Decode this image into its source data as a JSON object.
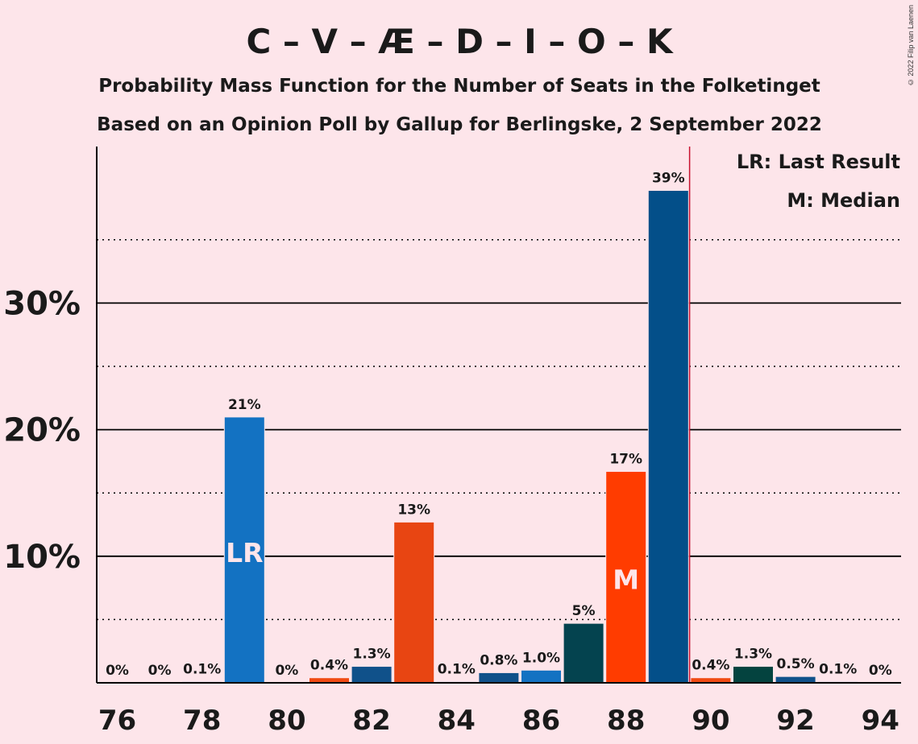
{
  "chart_data": {
    "type": "bar",
    "title": "C – V – Æ – D – I – O – K",
    "subtitle1": "Probability Mass Function for the Number of Seats in the Folketinget",
    "subtitle2": "Based on an Opinion Poll by Gallup for Berlingske, 2 September 2022",
    "copyright": "© 2022 Filip van Laenen",
    "legend": {
      "last_result": "LR: Last Result",
      "median": "M: Median"
    },
    "ylim": [
      0,
      42
    ],
    "y_major_ticks": [
      10,
      20,
      30
    ],
    "y_major_labels": [
      "10%",
      "20%",
      "30%"
    ],
    "y_minor_ticks": [
      5,
      15,
      25,
      35
    ],
    "x_ticks": [
      76,
      78,
      80,
      82,
      84,
      86,
      88,
      90,
      92,
      94
    ],
    "x_tick_labels": [
      "76",
      "78",
      "80",
      "82",
      "84",
      "86",
      "88",
      "90",
      "92",
      "94"
    ],
    "majority_line_x": 89.5,
    "bars": [
      {
        "x": 76,
        "value": 0,
        "label": "0%",
        "color": "#1f77c4"
      },
      {
        "x": 77,
        "value": 0,
        "label": "0%",
        "color": "#1f77c4"
      },
      {
        "x": 78,
        "value": 0.1,
        "label": "0.1%",
        "color": "#1f77c4"
      },
      {
        "x": 79,
        "value": 21,
        "label": "21%",
        "color": "#1372c2",
        "marker": "LR"
      },
      {
        "x": 80,
        "value": 0,
        "label": "0%",
        "color": "#1f77c4"
      },
      {
        "x": 81,
        "value": 0.4,
        "label": "0.4%",
        "color": "#f04a12"
      },
      {
        "x": 82,
        "value": 1.3,
        "label": "1.3%",
        "color": "#10518a"
      },
      {
        "x": 83,
        "value": 12.7,
        "label": "13%",
        "color": "#e84512"
      },
      {
        "x": 84,
        "value": 0.1,
        "label": "0.1%",
        "color": "#1f77c4"
      },
      {
        "x": 85,
        "value": 0.8,
        "label": "0.8%",
        "color": "#10518a"
      },
      {
        "x": 86,
        "value": 1.0,
        "label": "1.0%",
        "color": "#1372c2"
      },
      {
        "x": 87,
        "value": 4.7,
        "label": "5%",
        "color": "#04434f"
      },
      {
        "x": 88,
        "value": 16.7,
        "label": "17%",
        "color": "#ff3c00",
        "marker": "M"
      },
      {
        "x": 89,
        "value": 38.9,
        "label": "39%",
        "color": "#034f89"
      },
      {
        "x": 90,
        "value": 0.4,
        "label": "0.4%",
        "color": "#f04a12"
      },
      {
        "x": 91,
        "value": 1.3,
        "label": "1.3%",
        "color": "#04433f"
      },
      {
        "x": 92,
        "value": 0.5,
        "label": "0.5%",
        "color": "#10518a"
      },
      {
        "x": 93,
        "value": 0.1,
        "label": "0.1%",
        "color": "#1f77c4"
      },
      {
        "x": 94,
        "value": 0,
        "label": "0%",
        "color": "#1f77c4"
      }
    ],
    "colors": {
      "background": "#fde5ea",
      "axis": "#000000",
      "majority_line": "#c8102e",
      "marker_text": "#fde5ea"
    }
  }
}
